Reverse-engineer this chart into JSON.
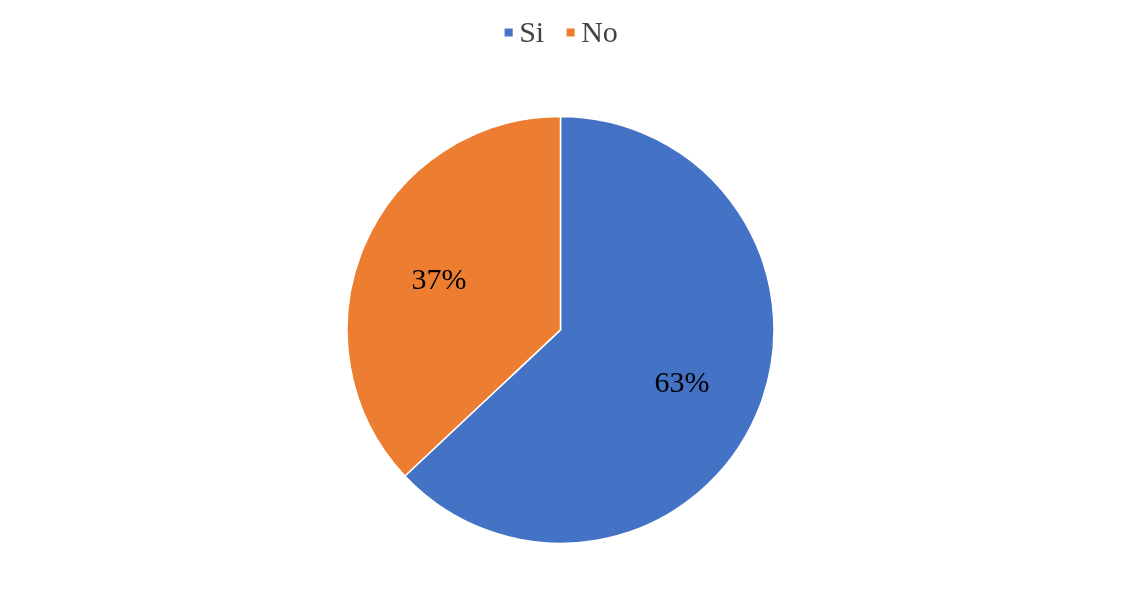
{
  "chart_data": {
    "type": "pie",
    "categories": [
      "Si",
      "No"
    ],
    "values": [
      63,
      37
    ],
    "value_labels": [
      "63%",
      "37%"
    ],
    "colors": [
      "#4472c4",
      "#ed7d31"
    ],
    "legend": "top"
  }
}
